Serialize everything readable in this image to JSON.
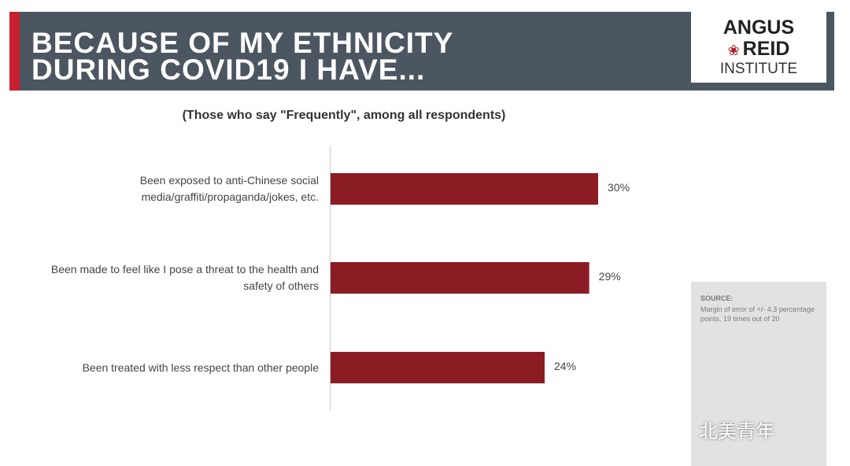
{
  "chart_data": {
    "type": "bar",
    "orientation": "horizontal",
    "title": [
      "BECAUSE OF MY ETHNICITY",
      "DURING COVID19 I HAVE..."
    ],
    "subtitle": "(Those who say \"Frequently\", among all respondents)",
    "categories": [
      "Been exposed to anti-Chinese social media/graffiti/propaganda/jokes, etc.",
      "Been made to feel like I pose a threat to the health and safety of others",
      "Been treated with less respect than other people"
    ],
    "values": [
      30,
      29,
      24
    ],
    "value_labels": [
      "30%",
      "29%",
      "24%"
    ],
    "color": "#8b1c23"
  },
  "logo": {
    "line1": "ANGUS",
    "line2": "REID",
    "line3": "INSTITUTE"
  },
  "source": {
    "heading": "SOURCE:",
    "text": "Margin of error of +/- 4.3 percentage points, 19 times out of 20"
  },
  "watermark": "北美青年"
}
